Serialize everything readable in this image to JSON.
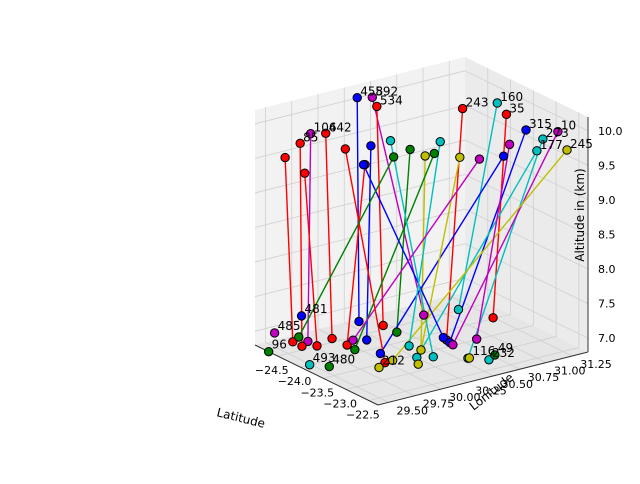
{
  "chart_data": {
    "type": "scatter3d",
    "title": "",
    "axes": {
      "x": {
        "label": "Latitude",
        "range": [
          -25.0,
          -22.3
        ],
        "ticks": [
          -24.5,
          -24.0,
          -23.5,
          -23.0,
          -22.5
        ],
        "tick_labels": [
          "−24.5",
          "−24.0",
          "−23.5",
          "−23.0",
          "−22.5"
        ]
      },
      "y": {
        "label": "Lonitude",
        "range": [
          29.4,
          31.4
        ],
        "ticks": [
          29.5,
          29.75,
          30.0,
          30.25,
          30.5,
          30.75,
          31.0,
          31.25
        ],
        "tick_labels": [
          "29.50",
          "29.75",
          "30.00",
          "30.25",
          "30.50",
          "30.75",
          "31.00",
          "31.25"
        ]
      },
      "z": {
        "label": "Altitude in (km)",
        "range": [
          6.8,
          10.2
        ],
        "ticks": [
          7.0,
          7.5,
          8.0,
          8.5,
          9.0,
          9.5,
          10.0
        ],
        "tick_labels": [
          "7.0",
          "7.5",
          "8.0",
          "8.5",
          "9.0",
          "9.5",
          "10.0"
        ]
      }
    },
    "series_colors": [
      "#0000ff",
      "#ff0000",
      "#008000",
      "#00bfbf",
      "#bf00bf",
      "#bfbf00"
    ],
    "grid": true,
    "legend": "none",
    "segments": [
      {
        "id": "458",
        "color": "#0000ff",
        "from": [
          -24.6,
          30.2,
          10.2
        ],
        "to": [
          -24.1,
          30.0,
          7.2
        ]
      },
      {
        "id": "592",
        "color": "#bf00bf",
        "from": [
          -24.5,
          30.3,
          10.2
        ],
        "to": [
          -23.6,
          30.4,
          7.3
        ]
      },
      {
        "id": "534",
        "color": "#ff0000",
        "from": [
          -24.4,
          30.3,
          10.1
        ],
        "to": [
          -23.8,
          30.1,
          7.2
        ]
      },
      {
        "id": "160",
        "color": "#00bfbf",
        "from": [
          -23.6,
          31.1,
          10.1
        ],
        "to": [
          -23.3,
          30.6,
          7.4
        ]
      },
      {
        "id": "243",
        "color": "#ff0000",
        "from": [
          -23.9,
          30.9,
          10.0
        ],
        "to": [
          -23.1,
          30.4,
          7.1
        ]
      },
      {
        "id": "35",
        "color": "#ff0000",
        "from": [
          -23.4,
          31.1,
          10.0
        ],
        "to": [
          -23.0,
          30.8,
          7.3
        ]
      },
      {
        "id": "315",
        "color": "#0000ff",
        "from": [
          -23.2,
          31.2,
          9.8
        ],
        "to": [
          -22.8,
          30.3,
          7.2
        ]
      },
      {
        "id": "273",
        "color": "#00bfbf",
        "from": [
          -22.6,
          31.1,
          9.9
        ],
        "to": [
          -22.4,
          30.3,
          7.1
        ]
      },
      {
        "id": "10",
        "color": "#bf00bf",
        "from": [
          -22.5,
          31.2,
          10.0
        ],
        "to": [
          -22.5,
          30.2,
          7.3
        ]
      },
      {
        "id": "177",
        "color": "#00bfbf",
        "from": [
          -22.5,
          31.0,
          9.8
        ],
        "to": [
          -22.6,
          29.9,
          7.2
        ]
      },
      {
        "id": "245",
        "color": "#bfbf00",
        "from": [
          -22.3,
          31.2,
          9.8
        ],
        "to": [
          -22.9,
          29.8,
          7.1
        ]
      },
      {
        "id": "106",
        "color": "#bf00bf",
        "from": [
          -24.7,
          29.8,
          9.8
        ],
        "to": [
          -24.3,
          29.6,
          7.0
        ]
      },
      {
        "id": "442",
        "color": "#ff0000",
        "from": [
          -24.6,
          29.9,
          9.8
        ],
        "to": [
          -24.0,
          29.7,
          7.1
        ]
      },
      {
        "id": "85",
        "color": "#ff0000",
        "from": [
          -24.7,
          29.7,
          9.7
        ],
        "to": [
          -24.2,
          29.5,
          7.0
        ]
      },
      {
        "id": "54",
        "color": "#0000ff",
        "from": [
          -24.3,
          30.2,
          9.6
        ],
        "to": [
          -23.7,
          29.9,
          7.1
        ]
      },
      {
        "id": "12",
        "color": "#ff0000",
        "from": [
          -24.6,
          29.7,
          9.3
        ],
        "to": [
          -24.1,
          29.6,
          7.0
        ]
      },
      {
        "id": "66",
        "color": "#008000",
        "from": [
          -23.9,
          30.4,
          9.6
        ],
        "to": [
          -23.5,
          30.1,
          7.2
        ]
      },
      {
        "id": "205",
        "color": "#bfbf00",
        "from": [
          -23.8,
          30.5,
          9.5
        ],
        "to": [
          -23.2,
          30.2,
          7.0
        ]
      },
      {
        "id": "389",
        "color": "#bf00bf",
        "from": [
          -23.1,
          31.0,
          9.7
        ],
        "to": [
          -22.9,
          30.6,
          7.1
        ]
      },
      {
        "id": "91",
        "color": "#0000ff",
        "from": [
          -23.0,
          30.9,
          9.6
        ],
        "to": [
          -23.4,
          29.9,
          7.0
        ]
      },
      {
        "id": "313",
        "color": "#ff0000",
        "from": [
          -24.2,
          30.1,
          9.4
        ],
        "to": [
          -23.9,
          29.8,
          7.0
        ]
      },
      {
        "id": "61",
        "color": "#00bfbf",
        "from": [
          -23.7,
          30.6,
          9.7
        ],
        "to": [
          -23.0,
          30.0,
          7.2
        ]
      },
      {
        "id": "127",
        "color": "#008000",
        "from": [
          -23.6,
          30.5,
          9.6
        ],
        "to": [
          -23.5,
          29.7,
          7.1
        ]
      },
      {
        "id": "301",
        "color": "#bfbf00",
        "from": [
          -23.5,
          30.7,
          9.5
        ],
        "to": [
          -22.8,
          30.0,
          7.0
        ]
      },
      {
        "id": "188",
        "color": "#ff0000",
        "from": [
          -24.8,
          29.6,
          9.5
        ],
        "to": [
          -24.4,
          29.5,
          7.0
        ]
      },
      {
        "id": "74",
        "color": "#0000ff",
        "from": [
          -24.0,
          30.0,
          9.5
        ],
        "to": [
          -23.4,
          30.5,
          7.0
        ]
      },
      {
        "id": "352",
        "color": "#00bfbf",
        "from": [
          -24.1,
          30.3,
          9.7
        ],
        "to": [
          -22.7,
          30.1,
          7.1
        ]
      },
      {
        "id": "29",
        "color": "#bf00bf",
        "from": [
          -23.3,
          30.8,
          9.5
        ],
        "to": [
          -24.0,
          29.9,
          7.0
        ]
      },
      {
        "id": "404",
        "color": "#ff0000",
        "from": [
          -24.4,
          30.0,
          9.6
        ],
        "to": [
          -23.3,
          29.9,
          6.9
        ]
      },
      {
        "id": "141",
        "color": "#008000",
        "from": [
          -23.8,
          30.2,
          9.6
        ],
        "to": [
          -24.5,
          29.6,
          7.0
        ]
      }
    ],
    "top_point_labels": [
      "458",
      "592",
      "534",
      "160",
      "243",
      "35",
      "315",
      "273",
      "10",
      "177",
      "245",
      "106",
      "442",
      "85"
    ],
    "bottom_point_labels": [
      "485",
      "480",
      "493",
      "212",
      "116",
      "232",
      "49",
      "96",
      "481"
    ],
    "bottom_points": [
      {
        "label": "485",
        "color": "#bf00bf",
        "at": [
          -24.8,
          29.5,
          7.0
        ]
      },
      {
        "label": "480",
        "color": "#008000",
        "at": [
          -23.6,
          29.5,
          6.9
        ]
      },
      {
        "label": "493",
        "color": "#00bfbf",
        "at": [
          -23.8,
          29.4,
          6.9
        ]
      },
      {
        "label": "212",
        "color": "#bfbf00",
        "at": [
          -23.2,
          29.8,
          6.9
        ]
      },
      {
        "label": "116",
        "color": "#bfbf00",
        "at": [
          -22.6,
          30.4,
          7.0
        ]
      },
      {
        "label": "232",
        "color": "#00bfbf",
        "at": [
          -22.4,
          30.5,
          7.0
        ]
      },
      {
        "label": "49",
        "color": "#008000",
        "at": [
          -22.5,
          30.6,
          7.0
        ]
      },
      {
        "label": "96",
        "color": "#008000",
        "at": [
          -24.7,
          29.4,
          6.8
        ]
      },
      {
        "label": "481",
        "color": "#0000ff",
        "at": [
          -24.9,
          29.8,
          7.1
        ]
      }
    ]
  }
}
